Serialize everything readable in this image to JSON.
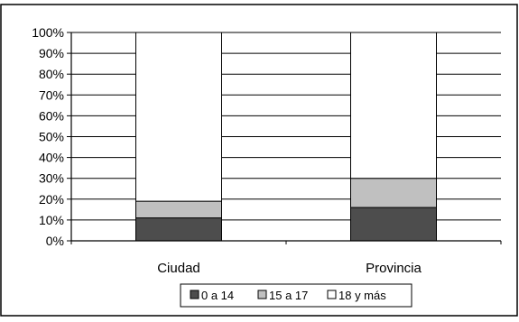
{
  "chart_data": {
    "type": "bar",
    "stacked": true,
    "normalized": true,
    "categories": [
      "Ciudad",
      "Provincia"
    ],
    "series": [
      {
        "name": "0 a 14",
        "values": [
          11,
          16
        ],
        "color": "#4d4d4d"
      },
      {
        "name": "15 a 17",
        "values": [
          8,
          14
        ],
        "color": "#c0c0c0"
      },
      {
        "name": "18 y más",
        "values": [
          81,
          70
        ],
        "color": "#ffffff"
      }
    ],
    "ylim": [
      0,
      100
    ],
    "yticks": [
      "0%",
      "10%",
      "20%",
      "30%",
      "40%",
      "50%",
      "60%",
      "70%",
      "80%",
      "90%",
      "100%"
    ],
    "grid": true,
    "legend_position": "bottom-center",
    "title": "",
    "xlabel": "",
    "ylabel": ""
  }
}
